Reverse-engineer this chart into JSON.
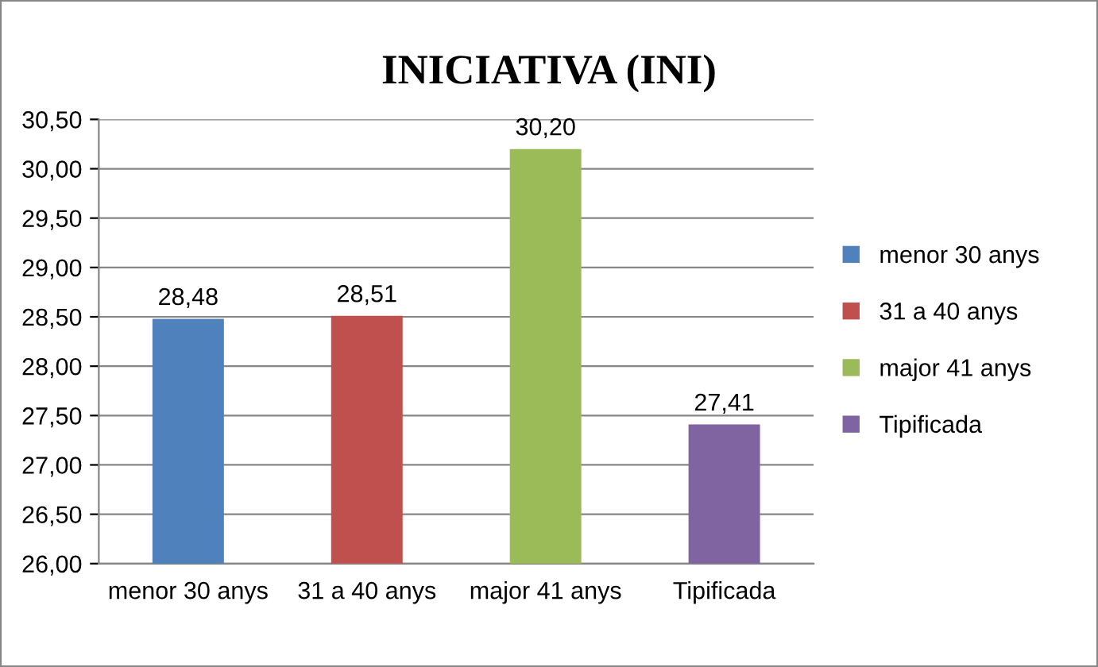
{
  "chart_data": {
    "type": "bar",
    "title": "INICIATIVA (INI)",
    "categories": [
      "menor 30 anys",
      "31 a 40 anys",
      "major 41 anys",
      "Tipificada"
    ],
    "series": [
      {
        "name": "menor 30 anys",
        "color": "#4f81bd",
        "values": [
          28.48,
          null,
          null,
          null
        ],
        "value_labels": [
          "28,48",
          null,
          null,
          null
        ]
      },
      {
        "name": "31 a 40 anys",
        "color": "#c0504d",
        "values": [
          null,
          28.51,
          null,
          null
        ],
        "value_labels": [
          null,
          "28,51",
          null,
          null
        ]
      },
      {
        "name": "major 41 anys",
        "color": "#9bbb59",
        "values": [
          null,
          null,
          30.2,
          null
        ],
        "value_labels": [
          null,
          null,
          "30,20",
          null
        ]
      },
      {
        "name": "Tipificada",
        "color": "#8064a2",
        "values": [
          null,
          null,
          null,
          27.41
        ],
        "value_labels": [
          null,
          null,
          null,
          "27,41"
        ]
      }
    ],
    "ylim": [
      26,
      30.5
    ],
    "yticks": [
      {
        "value": 26,
        "label": "26,00"
      },
      {
        "value": 26.5,
        "label": "26,50"
      },
      {
        "value": 27,
        "label": "27,00"
      },
      {
        "value": 27.5,
        "label": "27,50"
      },
      {
        "value": 28,
        "label": "28,00"
      },
      {
        "value": 28.5,
        "label": "28,50"
      },
      {
        "value": 29,
        "label": "29,00"
      },
      {
        "value": 29.5,
        "label": "29,50"
      },
      {
        "value": 30,
        "label": "30,00"
      },
      {
        "value": 30.5,
        "label": "30,50"
      }
    ],
    "grid": "y",
    "legend": "right"
  }
}
